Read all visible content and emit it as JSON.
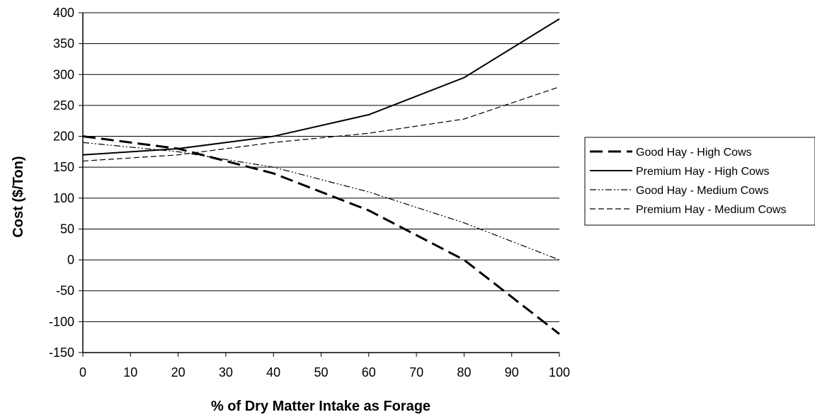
{
  "chart_data": {
    "type": "line",
    "title": "",
    "xlabel": "% of Dry Matter Intake as Forage",
    "ylabel": "Cost ($/Ton)",
    "xlim": [
      0,
      100
    ],
    "ylim": [
      -150,
      400
    ],
    "xticks": [
      0,
      10,
      20,
      30,
      40,
      50,
      60,
      70,
      80,
      90,
      100
    ],
    "yticks": [
      400,
      350,
      300,
      250,
      200,
      150,
      100,
      50,
      0,
      -50,
      -100,
      -150
    ],
    "grid": "horizontal",
    "legend_position": "right",
    "x": [
      0,
      20,
      40,
      60,
      80,
      100
    ],
    "series": [
      {
        "name": "Good Hay - High Cows",
        "values": [
          200,
          180,
          140,
          80,
          0,
          -120
        ],
        "style": "long-dash",
        "color": "#000000"
      },
      {
        "name": "Premium Hay - High Cows",
        "values": [
          170,
          180,
          200,
          235,
          295,
          390
        ],
        "style": "solid",
        "color": "#000000"
      },
      {
        "name": "Good Hay - Medium Cows",
        "values": [
          190,
          175,
          150,
          110,
          60,
          0
        ],
        "style": "dash-dot-dot",
        "color": "#000000"
      },
      {
        "name": "Premium Hay - Medium Cows",
        "values": [
          160,
          170,
          190,
          205,
          228,
          280
        ],
        "style": "short-dash",
        "color": "#000000"
      }
    ]
  }
}
